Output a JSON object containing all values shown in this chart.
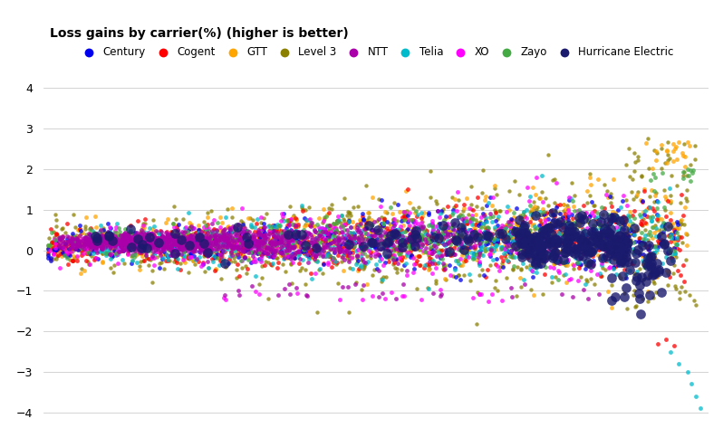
{
  "title": "Loss gains by carrier(%) (higher is better)",
  "carriers": [
    "Century",
    "Cogent",
    "GTT",
    "Level 3",
    "NTT",
    "Telia",
    "XO",
    "Zayo",
    "Hurricane Electric"
  ],
  "colors": {
    "Century": "#0000EE",
    "Cogent": "#FF0000",
    "GTT": "#FFA500",
    "Level 3": "#8B8000",
    "NTT": "#AA00AA",
    "Telia": "#00BBCC",
    "XO": "#FF00FF",
    "Zayo": "#44AA44",
    "Hurricane Electric": "#1a1a6e"
  },
  "ylim": [
    -4.3,
    4.3
  ],
  "yticks": [
    -4,
    -3,
    -2,
    -1,
    0,
    1,
    2,
    3,
    4
  ],
  "marker_sizes": {
    "Century": 12,
    "Cogent": 12,
    "GTT": 12,
    "Level 3": 10,
    "NTT": 12,
    "Telia": 12,
    "XO": 12,
    "Zayo": 12,
    "Hurricane Electric": 60
  },
  "background_color": "#ffffff",
  "grid_color": "#cccccc"
}
